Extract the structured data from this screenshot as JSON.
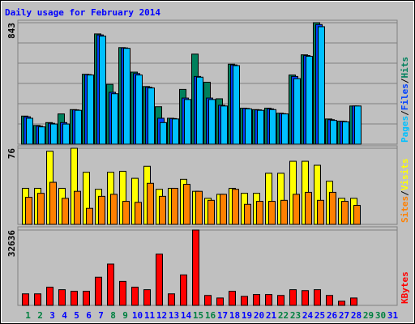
{
  "chart_data": [
    {
      "type": "bar",
      "title": "Daily usage for February 2014",
      "ylim": [
        0,
        843
      ],
      "yticks": [
        843
      ],
      "legend_separator": "/",
      "series": [
        {
          "name": "Pages",
          "color": "#00c0ff",
          "values": [
            180,
            120,
            140,
            140,
            235,
            480,
            750,
            350,
            665,
            480,
            390,
            150,
            175,
            310,
            465,
            310,
            265,
            545,
            245,
            235,
            240,
            210,
            455,
            610,
            815,
            165,
            155,
            265,
            null,
            null,
            null
          ]
        },
        {
          "name": "Files",
          "color": "#0040ff",
          "values": [
            190,
            125,
            145,
            150,
            238,
            483,
            758,
            360,
            668,
            490,
            395,
            180,
            178,
            320,
            470,
            320,
            270,
            550,
            248,
            238,
            245,
            212,
            470,
            615,
            830,
            170,
            158,
            265,
            null,
            null,
            null
          ]
        },
        {
          "name": "Hits",
          "color": "#00805c",
          "values": [
            195,
            130,
            150,
            210,
            240,
            485,
            765,
            415,
            670,
            500,
            400,
            260,
            180,
            380,
            625,
            430,
            315,
            555,
            250,
            240,
            250,
            215,
            480,
            620,
            843,
            175,
            160,
            265,
            null,
            null,
            null
          ]
        }
      ]
    },
    {
      "type": "bar",
      "ylim": [
        0,
        76
      ],
      "yticks": [
        76
      ],
      "legend_separator": "/",
      "series": [
        {
          "name": "Sites",
          "color": "#ff8000",
          "values": [
            27,
            31,
            42,
            26,
            33,
            16,
            28,
            30,
            23,
            22,
            41,
            28,
            36,
            40,
            33,
            24,
            30,
            35,
            20,
            23,
            23,
            24,
            30,
            32,
            24,
            32,
            23,
            19,
            null,
            null,
            null
          ]
        },
        {
          "name": "Visits",
          "color": "#ffff00",
          "values": [
            36,
            36,
            73,
            36,
            76,
            52,
            35,
            52,
            53,
            46,
            58,
            35,
            36,
            45,
            33,
            26,
            30,
            36,
            31,
            31,
            51,
            51,
            63,
            63,
            59,
            43,
            26,
            26,
            null,
            null,
            null
          ]
        }
      ]
    },
    {
      "type": "bar",
      "ylim": [
        0,
        32636
      ],
      "yticks": [
        32636
      ],
      "series": [
        {
          "name": "KBytes",
          "color": "#ff0000",
          "values": [
            5000,
            5000,
            7900,
            6800,
            6100,
            6100,
            12200,
            17900,
            10400,
            7900,
            6800,
            22200,
            5000,
            13200,
            32636,
            4300,
            3200,
            6100,
            3900,
            4700,
            4700,
            4300,
            6800,
            6400,
            6800,
            4300,
            1800,
            3200,
            null,
            null,
            null
          ]
        }
      ],
      "categories": [
        "1",
        "2",
        "3",
        "4",
        "5",
        "6",
        "7",
        "8",
        "9",
        "10",
        "11",
        "12",
        "13",
        "14",
        "15",
        "16",
        "17",
        "18",
        "19",
        "20",
        "21",
        "22",
        "23",
        "24",
        "25",
        "26",
        "27",
        "28",
        "29",
        "30",
        "31"
      ],
      "category_colors": [
        "#008040",
        "#008040",
        "#0000ff",
        "#0000ff",
        "#0000ff",
        "#0000ff",
        "#0000ff",
        "#008040",
        "#008040",
        "#0000ff",
        "#0000ff",
        "#0000ff",
        "#0000ff",
        "#0000ff",
        "#008040",
        "#008040",
        "#0000ff",
        "#0000ff",
        "#0000ff",
        "#0000ff",
        "#0000ff",
        "#008040",
        "#008040",
        "#0000ff",
        "#0000ff",
        "#0000ff",
        "#0000ff",
        "#0000ff",
        "#008040",
        "#008040",
        "#0000ff"
      ]
    }
  ]
}
